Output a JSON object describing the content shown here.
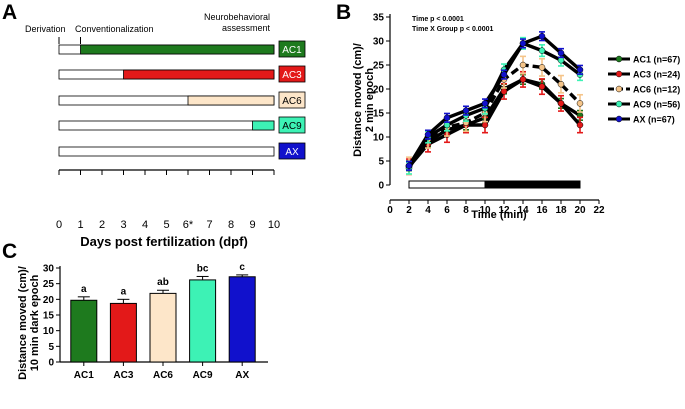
{
  "chart_data": [
    {
      "panel": "A",
      "type": "timeline",
      "title": "",
      "xlabel": "Days post fertilization (dpf)",
      "xlim": [
        0,
        10
      ],
      "ticks": [
        "0",
        "1",
        "2",
        "3",
        "4",
        "5",
        "6*",
        "7",
        "8",
        "9",
        "10"
      ],
      "annotations": [
        "Derivation",
        "Conventionalization",
        "Neurobehavioral assessment"
      ],
      "groups": [
        {
          "name": "AC1",
          "start": 1,
          "end": 10,
          "color": "#1e7a1e"
        },
        {
          "name": "AC3",
          "start": 3,
          "end": 10,
          "color": "#e31919"
        },
        {
          "name": "AC6",
          "start": 6,
          "end": 10,
          "color": "#fde6c9"
        },
        {
          "name": "AC9",
          "start": 9,
          "end": 10,
          "color": "#3df2b5"
        },
        {
          "name": "AX",
          "start": null,
          "end": null,
          "color": "#1111cc"
        }
      ]
    },
    {
      "panel": "B",
      "type": "line",
      "xlabel": "Time (min)",
      "ylabel": "Distance moved (cm)/ 2 min epoch",
      "xlim": [
        0,
        22
      ],
      "ylim": [
        0,
        35
      ],
      "x_ticks": [
        "0",
        "2",
        "4",
        "6",
        "8",
        "10",
        "12",
        "14",
        "16",
        "18",
        "20",
        "22"
      ],
      "y_ticks": [
        "0",
        "5",
        "10",
        "15",
        "20",
        "25",
        "30",
        "35"
      ],
      "stats": [
        "Time p < 0.0001",
        "Time X Group p < 0.0001"
      ],
      "x": [
        2,
        4,
        6,
        8,
        10,
        12,
        14,
        16,
        18,
        20
      ],
      "light_dark_bar": {
        "light": [
          2,
          10
        ],
        "dark": [
          10,
          20
        ]
      },
      "series": [
        {
          "name": "AC1 (n=67)",
          "color": "#1e7a1e",
          "dash": "solid",
          "values": [
            4,
            9,
            11.5,
            12.5,
            14,
            20,
            22,
            21,
            17,
            14.5
          ],
          "err": 1
        },
        {
          "name": "AC3 (n=24)",
          "color": "#e31919",
          "dash": "solid",
          "values": [
            3.8,
            8.5,
            10.5,
            12.5,
            12.5,
            19.5,
            22,
            20.5,
            17,
            12.5
          ],
          "err": 1.6
        },
        {
          "name": "AC6 (n=12)",
          "color": "#f5c58a",
          "dash": "dashed",
          "values": [
            4,
            9.5,
            12,
            13,
            15,
            22,
            25,
            24.5,
            21,
            17
          ],
          "err": 1.8
        },
        {
          "name": "AC9 (n=56)",
          "color": "#3df2b5",
          "dash": "solid",
          "values": [
            3.5,
            10,
            12.5,
            14.5,
            16,
            24,
            29.5,
            28,
            26,
            23
          ],
          "err": 1.2
        },
        {
          "name": "AX (n=67)",
          "color": "#1111cc",
          "dash": "solid",
          "values": [
            4,
            10.5,
            14,
            15.5,
            17,
            23,
            29.5,
            31,
            27.5,
            24
          ],
          "err": 0.9
        }
      ]
    },
    {
      "panel": "C",
      "type": "bar",
      "ylabel": "Distance moved (cm)/ 10 min dark epoch",
      "ylim": [
        0,
        30
      ],
      "y_ticks": [
        "0",
        "5",
        "10",
        "15",
        "20",
        "25",
        "30"
      ],
      "categories": [
        "AC1",
        "AC3",
        "AC6",
        "AC9",
        "AX"
      ],
      "values": [
        19.7,
        18.7,
        21.9,
        26.2,
        27.2
      ],
      "errors": [
        1.1,
        1.3,
        1.0,
        1.1,
        0.6
      ],
      "labels": [
        "a",
        "a",
        "ab",
        "bc",
        "c"
      ],
      "colors": [
        "#1e7a1e",
        "#e31919",
        "#fde6c9",
        "#3df2b5",
        "#1111cc"
      ]
    }
  ]
}
